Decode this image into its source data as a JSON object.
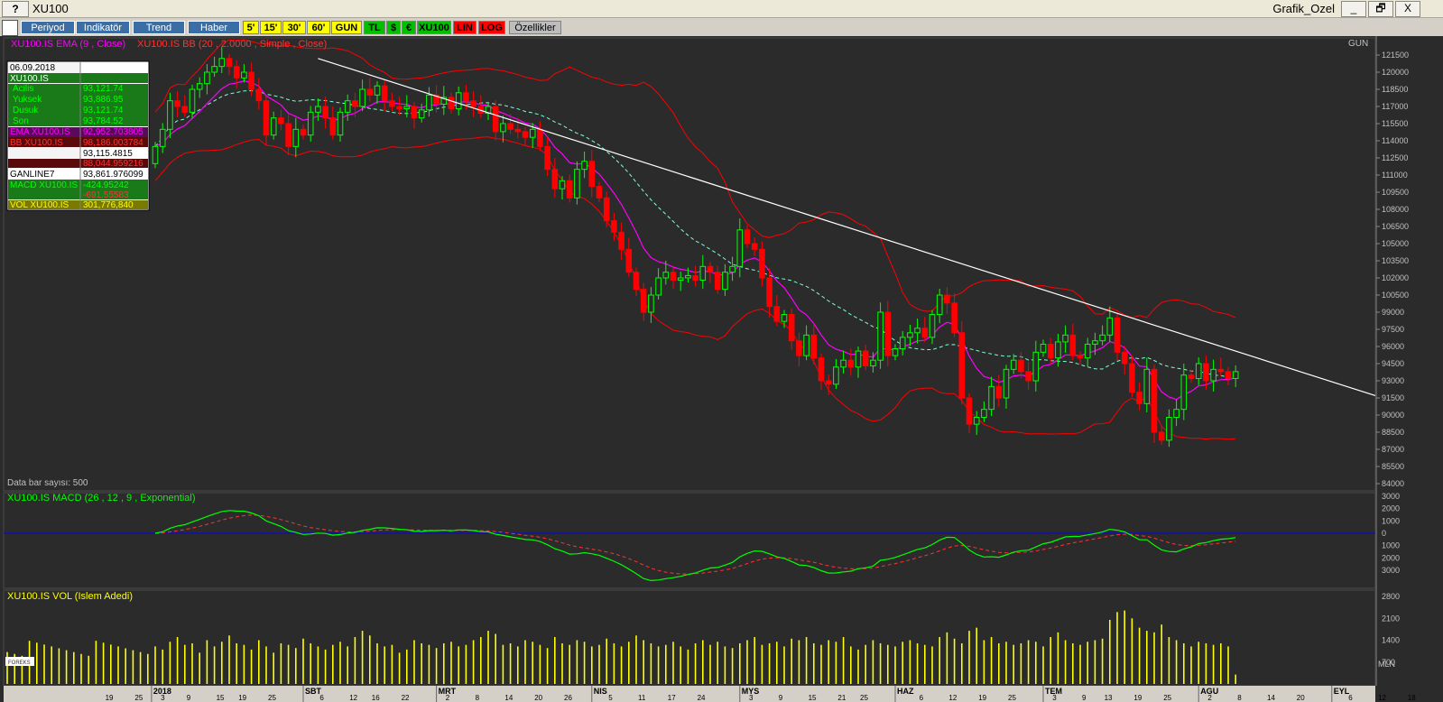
{
  "window": {
    "help_label": "?",
    "title": "XU100",
    "right_title": "Grafik_Ozel",
    "minimize": "_",
    "restore": "🗗",
    "close": "X"
  },
  "toolbar": {
    "periyod": "Periyod",
    "indikator": "Indikatör",
    "trend": "Trend",
    "haber": "Haber",
    "b5": "5'",
    "b15": "15'",
    "b30": "30'",
    "b60": "60'",
    "gun": "GUN",
    "tl": "TL",
    "dollar": "$",
    "euro": "€",
    "xu100": "XU100",
    "lin": "LIN",
    "log": "LOG",
    "ozellikler": "Özellikler"
  },
  "colors": {
    "background": "#2b2b2b",
    "up": "#00ff00",
    "down": "#ff0000",
    "ema": "#ff00ff",
    "bb": "#ff0000",
    "bb_mid": "#7fffd4",
    "trendline": "#ffffff",
    "macd": "#00ff00",
    "signal": "#ff3333",
    "zero": "#0000ff",
    "volume": "#ffff00",
    "axis_text": "#c0c0c0"
  },
  "price_panel": {
    "legend_ema": "XU100.IS EMA (9 , Close)",
    "legend_bb": "XU100.IS BB (20 , 2.0000 , Simple , Close)",
    "period_label": "GUN",
    "data_bar_label": "Data bar sayısı: 500"
  },
  "info_box": {
    "date": "06.09.2018",
    "symbol": "XU100.IS",
    "rows": [
      {
        "label": "Acilis",
        "value": "93,121.74"
      },
      {
        "label": "Yuksek",
        "value": "93,886.95"
      },
      {
        "label": "Dusuk",
        "value": "93,121.74"
      },
      {
        "label": "Son",
        "value": "93,784.52"
      }
    ],
    "ema_label": "EMA XU100.IS",
    "ema_value": "92,952.703805",
    "bb_label": "BB XU100.IS",
    "bb_upper": "98,186.003784",
    "bb_mid": "93,115.4815",
    "bb_lower": "88,044.959216",
    "ganline_label": "GANLINE7",
    "ganline_value": "93,861.976099",
    "macd_label": "MACD XU100.IS",
    "macd_value": "-424.95242",
    "macd_signal": "-691.55583",
    "vol_label": "VOL XU100.IS",
    "vol_value": "301,776,840"
  },
  "macd_panel": {
    "legend": "XU100.IS MACD (26 , 12 , 9 , Exponential)"
  },
  "vol_panel": {
    "legend": "XU100.IS VOL (Islem Adedi)",
    "unit": "MLN",
    "logo": "FOREKS"
  },
  "chart_data": {
    "type": "candlestick",
    "price_axis": {
      "min": 84000,
      "max": 121500,
      "ticks": [
        "121500",
        "120000",
        "118500",
        "117000",
        "115500",
        "114000",
        "112500",
        "111000",
        "109500",
        "108000",
        "106500",
        "105000",
        "103500",
        "102000",
        "100500",
        "99000",
        "97500",
        "96000",
        "94500",
        "93000",
        "91500",
        "90000",
        "88500",
        "87000",
        "85500",
        "84000"
      ]
    },
    "macd_axis": {
      "min": -4000,
      "max": 3000,
      "ticks": [
        "3000",
        "2000",
        "1000",
        "0",
        "1000",
        "2000",
        "3000"
      ]
    },
    "vol_axis": {
      "min": 0,
      "max": 2800,
      "ticks": [
        "2800",
        "2100",
        "1400",
        "700"
      ]
    },
    "x_ticks": [
      {
        "text": "19",
        "i": -7
      },
      {
        "text": "25",
        "i": -3
      },
      {
        "text": "2018",
        "i": -0.5,
        "month": true
      },
      {
        "text": "3",
        "i": 0.5
      },
      {
        "text": "9",
        "i": 4
      },
      {
        "text": "15",
        "i": 8
      },
      {
        "text": "19",
        "i": 11
      },
      {
        "text": "25",
        "i": 15
      },
      {
        "text": "SBT",
        "i": 20,
        "month": true
      },
      {
        "text": "6",
        "i": 22
      },
      {
        "text": "12",
        "i": 26
      },
      {
        "text": "16",
        "i": 29
      },
      {
        "text": "22",
        "i": 33
      },
      {
        "text": "MRT",
        "i": 38,
        "month": true
      },
      {
        "text": "2",
        "i": 39
      },
      {
        "text": "8",
        "i": 43
      },
      {
        "text": "14",
        "i": 47
      },
      {
        "text": "20",
        "i": 51
      },
      {
        "text": "26",
        "i": 55
      },
      {
        "text": "NIS",
        "i": 59,
        "month": true
      },
      {
        "text": "5",
        "i": 61
      },
      {
        "text": "11",
        "i": 65
      },
      {
        "text": "17",
        "i": 69
      },
      {
        "text": "24",
        "i": 73
      },
      {
        "text": "MYS",
        "i": 79,
        "month": true
      },
      {
        "text": "3",
        "i": 80
      },
      {
        "text": "9",
        "i": 84
      },
      {
        "text": "15",
        "i": 88
      },
      {
        "text": "21",
        "i": 92
      },
      {
        "text": "25",
        "i": 95
      },
      {
        "text": "HAZ",
        "i": 100,
        "month": true
      },
      {
        "text": "6",
        "i": 103
      },
      {
        "text": "12",
        "i": 107
      },
      {
        "text": "19",
        "i": 111
      },
      {
        "text": "25",
        "i": 115
      },
      {
        "text": "TEM",
        "i": 120,
        "month": true
      },
      {
        "text": "3",
        "i": 121
      },
      {
        "text": "9",
        "i": 125
      },
      {
        "text": "13",
        "i": 128
      },
      {
        "text": "19",
        "i": 132
      },
      {
        "text": "25",
        "i": 136
      },
      {
        "text": "AGU",
        "i": 141,
        "month": true
      },
      {
        "text": "2",
        "i": 142
      },
      {
        "text": "8",
        "i": 146
      },
      {
        "text": "14",
        "i": 150
      },
      {
        "text": "20",
        "i": 154
      },
      {
        "text": "EYL",
        "i": 159,
        "month": true
      },
      {
        "text": "6",
        "i": 161
      },
      {
        "text": "12",
        "i": 165
      },
      {
        "text": "18",
        "i": 169
      }
    ],
    "closes": [
      113500,
      115000,
      117500,
      117000,
      116500,
      118500,
      119000,
      120000,
      120500,
      121200,
      120500,
      119500,
      120000,
      118500,
      117500,
      114500,
      116000,
      115500,
      113500,
      115000,
      114500,
      116500,
      117000,
      116000,
      114500,
      116500,
      117500,
      117000,
      118500,
      118000,
      118800,
      117500,
      117000,
      116800,
      117000,
      116000,
      116700,
      118000,
      117200,
      117800,
      116800,
      118200,
      117500,
      117000,
      116400,
      117000,
      114800,
      115500,
      115000,
      114800,
      114300,
      115000,
      113500,
      111500,
      109800,
      110500,
      109000,
      111500,
      112200,
      110000,
      109000,
      107000,
      106000,
      104500,
      102500,
      101000,
      99000,
      100500,
      102000,
      102500,
      101800,
      102000,
      102200,
      101800,
      103000,
      102500,
      101000,
      102500,
      103000,
      106200,
      105000,
      104500,
      102000,
      99500,
      98200,
      98800,
      96500,
      95200,
      97000,
      95000,
      93000,
      92700,
      94200,
      94800,
      94200,
      95600,
      94300,
      94800,
      99000,
      95200,
      95800,
      96800,
      97200,
      97600,
      96800,
      98800,
      100500,
      99800,
      97200,
      91500,
      89200,
      89800,
      90500,
      92500,
      91500,
      94000,
      94800,
      93800,
      93000,
      95500,
      96200,
      95000,
      96400,
      97000,
      95200,
      95000,
      96200,
      96500,
      97000,
      98500,
      95500,
      94500,
      92000,
      91000,
      94000,
      88500,
      87800,
      89800,
      90500,
      93500,
      93200,
      94500,
      93000,
      94000,
      93800,
      93200,
      93800
    ],
    "opens": [
      112000,
      113500,
      115000,
      117500,
      117000,
      116500,
      118500,
      119000,
      120000,
      120500,
      121200,
      120500,
      119500,
      120000,
      118500,
      117500,
      114500,
      116000,
      115500,
      113500,
      115000,
      114500,
      116500,
      117000,
      116000,
      114500,
      116500,
      117500,
      117000,
      118500,
      118000,
      118800,
      117500,
      117000,
      116800,
      117000,
      116000,
      116700,
      118000,
      117200,
      117800,
      116800,
      118200,
      117500,
      117000,
      116400,
      117000,
      114800,
      115500,
      115000,
      114800,
      114300,
      115000,
      113500,
      111500,
      109800,
      110500,
      109000,
      111500,
      112200,
      110000,
      109000,
      107000,
      106000,
      104500,
      102500,
      101000,
      99000,
      100500,
      102000,
      102500,
      101800,
      102000,
      102200,
      101800,
      103000,
      102500,
      101000,
      102500,
      103000,
      106200,
      105000,
      104500,
      102000,
      99500,
      98200,
      98800,
      96500,
      95200,
      97000,
      95000,
      93000,
      92700,
      94200,
      94800,
      94200,
      95600,
      94300,
      94800,
      99000,
      95200,
      95800,
      96800,
      97200,
      97600,
      96800,
      98800,
      100500,
      99800,
      97200,
      91500,
      89200,
      89800,
      90500,
      92500,
      91500,
      94000,
      94800,
      93800,
      93000,
      95500,
      96200,
      95000,
      96400,
      97000,
      95200,
      95000,
      96200,
      96500,
      97000,
      98500,
      95500,
      94500,
      92000,
      91000,
      94000,
      88500,
      87800,
      89800,
      90500,
      93500,
      93200,
      94500,
      93000,
      94000,
      93800,
      93200
    ],
    "volume": [
      1200,
      1100,
      1350,
      1500,
      1250,
      1300,
      1000,
      1400,
      1200,
      1350,
      1550,
      1300,
      1250,
      1100,
      1400,
      1200,
      1000,
      1300,
      1250,
      1150,
      1450,
      1300,
      1200,
      1100,
      1250,
      1350,
      1200,
      1500,
      1700,
      1550,
      1300,
      1200,
      1250,
      1000,
      1100,
      1400,
      1300,
      1250,
      1150,
      1300,
      1350,
      1200,
      1250,
      1400,
      1500,
      1700,
      1600,
      1250,
      1300,
      1200,
      1400,
      1350,
      1250,
      1150,
      1500,
      1300,
      1250,
      1400,
      1350,
      1200,
      1250,
      1450,
      1300,
      1200,
      1350,
      1550,
      1400,
      1300,
      1200,
      1250,
      1350,
      1200,
      1100,
      1300,
      1400,
      1250,
      1350,
      1200,
      1150,
      1300,
      1400,
      1500,
      1250,
      1300,
      1350,
      1200,
      1450,
      1400,
      1500,
      1300,
      1250,
      1400,
      1350,
      1500,
      1200,
      1100,
      1250,
      1400,
      1300,
      1250,
      1200,
      1350,
      1400,
      1300,
      1250,
      1200,
      1500,
      1650,
      1450,
      1300,
      1700,
      1800,
      1400,
      1500,
      1300,
      1350,
      1250,
      1300,
      1400,
      1350,
      1200,
      1500,
      1650,
      1400,
      1300,
      1250,
      1350,
      1400,
      1450,
      2050,
      2300,
      2350,
      2100,
      1800,
      1700,
      1650,
      1900,
      1500,
      1400,
      1300,
      1200,
      1350,
      1300,
      1250,
      1300,
      1200,
      300
    ],
    "trendline": {
      "from": {
        "i": 22,
        "value": 121200
      },
      "to_value_at_axis": 91700
    }
  }
}
